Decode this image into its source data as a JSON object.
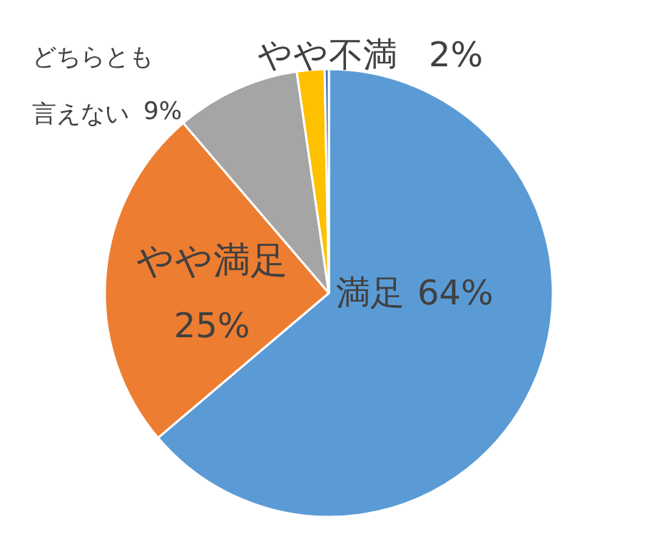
{
  "chart_data": {
    "type": "pie",
    "categories": [
      "満足",
      "やや満足",
      "どちらとも言えない",
      "やや不満",
      null
    ],
    "values": [
      64,
      25,
      9,
      2,
      0.3
    ],
    "colors": [
      "#5b9bd5",
      "#ed7d31",
      "#a5a5a5",
      "#ffc000",
      "#4472c4"
    ],
    "value_labels": [
      "64%",
      "25%",
      "9%",
      "2%",
      null
    ]
  }
}
